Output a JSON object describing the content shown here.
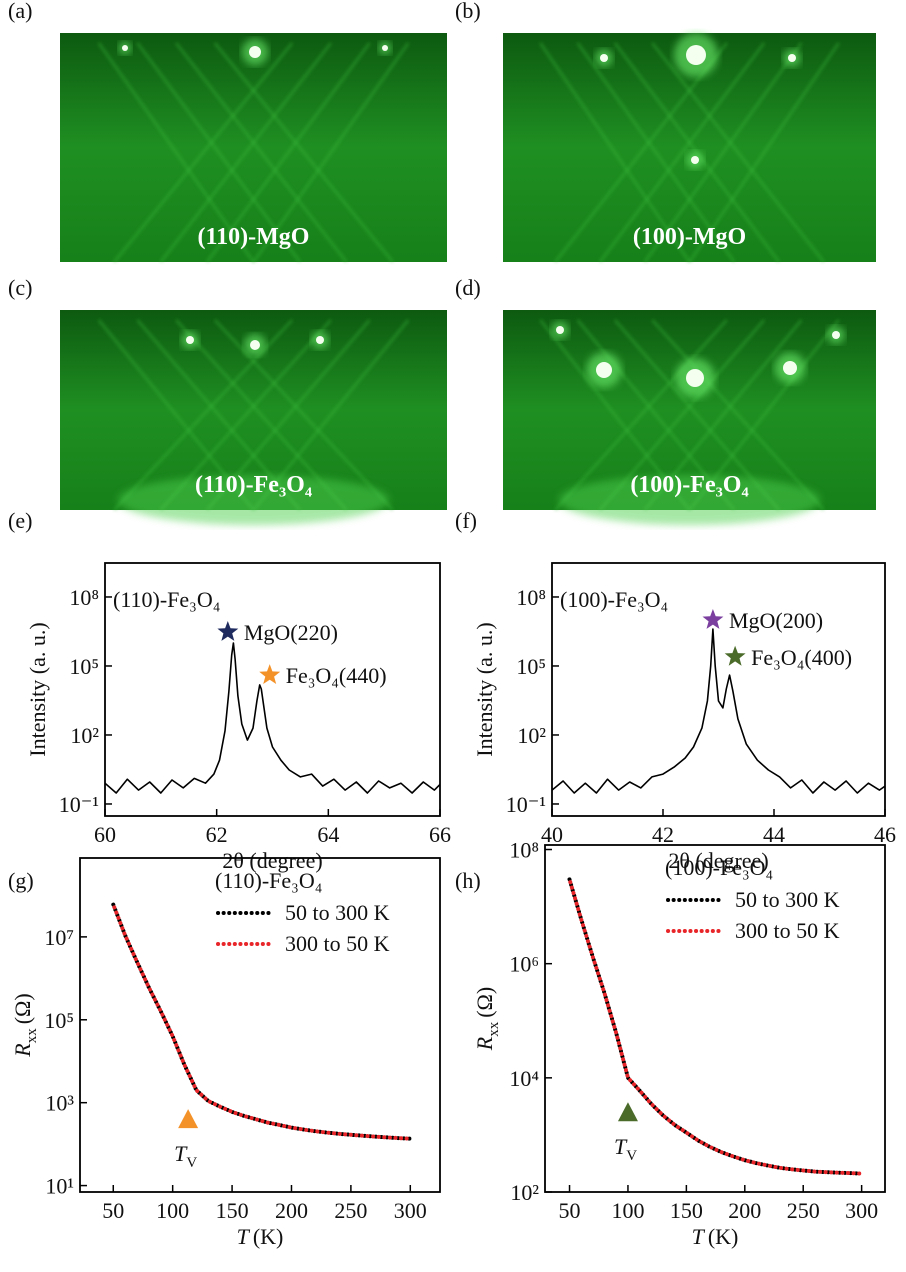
{
  "images": [
    {
      "label": "(a)",
      "caption": "(110)-MgO"
    },
    {
      "label": "(b)",
      "caption": "(100)-MgO"
    },
    {
      "label": "(c)",
      "caption": "(110)-Fe₃O₄"
    },
    {
      "label": "(d)",
      "caption": "(100)-Fe₃O₄"
    }
  ],
  "chart_data": [
    {
      "type": "line",
      "panel": "(e)",
      "log_y": true,
      "ylabel": "Intensity (a. u.)",
      "xlabel": "2θ (degree)",
      "inset_label": "(110)-Fe₃O₄",
      "xlim": [
        60,
        66
      ],
      "xticks": [
        60,
        62,
        64,
        66
      ],
      "ylim": [
        0.03,
        3000000000.0
      ],
      "yticks": [
        {
          "value": 0.1,
          "label": "10⁻¹"
        },
        {
          "value": 100,
          "label": "10²"
        },
        {
          "value": 100000,
          "label": "10⁵"
        },
        {
          "value": 100000000,
          "label": "10⁸"
        }
      ],
      "series": [
        {
          "color": "#000000",
          "x": [
            60,
            60.2,
            60.4,
            60.6,
            60.8,
            61,
            61.2,
            61.4,
            61.6,
            61.8,
            61.95,
            62.05,
            62.15,
            62.22,
            62.27,
            62.3,
            62.33,
            62.38,
            62.45,
            62.55,
            62.65,
            62.72,
            62.77,
            62.8,
            62.84,
            62.9,
            63,
            63.15,
            63.3,
            63.5,
            63.7,
            63.9,
            64.1,
            64.3,
            64.5,
            64.7,
            64.9,
            65.1,
            65.3,
            65.5,
            65.7,
            65.9,
            66
          ],
          "values": [
            0.8,
            0.3,
            1.2,
            0.4,
            0.9,
            0.3,
            1.1,
            0.5,
            1.3,
            0.8,
            2,
            8,
            150,
            8000,
            300000,
            1000000,
            200000,
            5000,
            300,
            60,
            200,
            3000,
            15000,
            10000,
            2000,
            200,
            30,
            8,
            3,
            1.5,
            2,
            0.6,
            1.2,
            0.4,
            0.9,
            0.3,
            1,
            0.5,
            0.8,
            0.3,
            0.9,
            0.4,
            0.7
          ]
        }
      ],
      "annotations": [
        {
          "text": "MgO(220)",
          "x": 62.2,
          "y": 3000000,
          "color": "#1f2a5e"
        },
        {
          "text": "Fe₃O₄(440)",
          "x": 62.95,
          "y": 40000,
          "color": "#f4922a"
        }
      ]
    },
    {
      "type": "line",
      "panel": "(f)",
      "log_y": true,
      "ylabel": "Intensity (a. u.)",
      "xlabel": "2θ (degree)",
      "inset_label": "(100)-Fe₃O₄",
      "xlim": [
        40,
        46
      ],
      "xticks": [
        40,
        42,
        44,
        46
      ],
      "ylim": [
        0.03,
        3000000000.0
      ],
      "yticks": [
        {
          "value": 0.1,
          "label": "10⁻¹"
        },
        {
          "value": 100,
          "label": "10²"
        },
        {
          "value": 100000,
          "label": "10⁵"
        },
        {
          "value": 100000000,
          "label": "10⁸"
        }
      ],
      "series": [
        {
          "color": "#000000",
          "x": [
            40,
            40.2,
            40.4,
            40.6,
            40.8,
            41,
            41.2,
            41.4,
            41.6,
            41.8,
            42,
            42.2,
            42.4,
            42.55,
            42.7,
            42.8,
            42.86,
            42.9,
            42.94,
            43.0,
            43.08,
            43.14,
            43.2,
            43.26,
            43.35,
            43.5,
            43.7,
            43.9,
            44.1,
            44.3,
            44.5,
            44.7,
            44.9,
            45.1,
            45.3,
            45.5,
            45.7,
            45.9,
            46
          ],
          "values": [
            0.4,
            1,
            0.3,
            0.8,
            0.3,
            1.2,
            0.4,
            0.9,
            0.5,
            1.5,
            2,
            4,
            10,
            30,
            200,
            3000,
            100000,
            4000000,
            100000,
            3000,
            1500,
            10000,
            40000,
            8000,
            500,
            40,
            8,
            3,
            1.5,
            0.5,
            1.1,
            0.3,
            0.9,
            0.4,
            1,
            0.3,
            0.8,
            0.4,
            0.6
          ]
        }
      ],
      "annotations": [
        {
          "text": "MgO(200)",
          "x": 42.9,
          "y": 10000000,
          "color": "#7b3fa0"
        },
        {
          "text": "Fe₃O₄(400)",
          "x": 43.3,
          "y": 250000,
          "color": "#4a6b2a"
        }
      ]
    },
    {
      "type": "line",
      "panel": "(g)",
      "log_y": true,
      "ylabel": {
        "var": "R",
        "sub": "xx",
        "unit": "(Ω)"
      },
      "xlabel": {
        "var": "T",
        "unit": "(K)"
      },
      "inset_label": "(110)-Fe₃O₄",
      "legend": true,
      "xlim": [
        22,
        325
      ],
      "xticks": [
        50,
        100,
        150,
        200,
        250,
        300
      ],
      "ylim": [
        7,
        800000000.0
      ],
      "yticks": [
        {
          "value": 10,
          "label": "10¹"
        },
        {
          "value": 1000,
          "label": "10³"
        },
        {
          "value": 100000,
          "label": "10⁵"
        },
        {
          "value": 10000000,
          "label": "10⁷"
        }
      ],
      "series": [
        {
          "name": "50 to 300 K",
          "color": "#000000",
          "x": [
            50,
            60,
            70,
            80,
            90,
            100,
            110,
            120,
            130,
            140,
            150,
            160,
            170,
            180,
            190,
            200,
            210,
            220,
            230,
            240,
            250,
            260,
            270,
            280,
            290,
            300
          ],
          "values": [
            60000000,
            11000000,
            2500000,
            600000,
            160000,
            40000,
            8000,
            2000,
            1100,
            800,
            600,
            480,
            400,
            330,
            290,
            250,
            225,
            205,
            190,
            178,
            168,
            160,
            152,
            145,
            140,
            135
          ]
        },
        {
          "name": "300 to 50 K",
          "color": "#e8262a",
          "x": [
            50,
            60,
            70,
            80,
            90,
            100,
            110,
            120,
            130,
            140,
            150,
            160,
            170,
            180,
            190,
            200,
            210,
            220,
            230,
            240,
            250,
            260,
            270,
            280,
            290,
            300
          ],
          "values": [
            60000000,
            11000000,
            2500000,
            600000,
            160000,
            40000,
            8000,
            2000,
            1100,
            800,
            600,
            480,
            400,
            330,
            290,
            250,
            225,
            205,
            190,
            178,
            168,
            160,
            152,
            145,
            140,
            135
          ]
        }
      ],
      "markers": [
        {
          "x": 113,
          "y": 400,
          "color": "#f4922a",
          "label": {
            "var": "T",
            "sub": "V"
          }
        }
      ]
    },
    {
      "type": "line",
      "panel": "(h)",
      "log_y": true,
      "ylabel": {
        "var": "R",
        "sub": "xx",
        "unit": "(Ω)"
      },
      "xlabel": {
        "var": "T",
        "unit": "(K)"
      },
      "inset_label": "(100)-Fe₃O₄",
      "legend": true,
      "xlim": [
        29,
        320
      ],
      "xticks": [
        50,
        100,
        150,
        200,
        250,
        300
      ],
      "ylim": [
        100,
        120000000.0
      ],
      "yticks": [
        {
          "value": 100,
          "label": "10²"
        },
        {
          "value": 10000,
          "label": "10⁴"
        },
        {
          "value": 1000000,
          "label": "10⁶"
        },
        {
          "value": 100000000,
          "label": "10⁸"
        }
      ],
      "series": [
        {
          "name": "50 to 300 K",
          "color": "#000000",
          "x": [
            50,
            60,
            70,
            80,
            90,
            100,
            110,
            120,
            130,
            140,
            150,
            160,
            170,
            180,
            190,
            200,
            210,
            220,
            230,
            240,
            250,
            260,
            270,
            280,
            290,
            300
          ],
          "values": [
            30000000,
            6000000,
            1300000,
            300000,
            60000,
            10000,
            6000,
            3500,
            2200,
            1500,
            1100,
            800,
            620,
            500,
            420,
            360,
            320,
            290,
            265,
            250,
            238,
            228,
            222,
            218,
            214,
            210
          ]
        },
        {
          "name": "300 to 50 K",
          "color": "#e8262a",
          "x": [
            50,
            60,
            70,
            80,
            90,
            100,
            110,
            120,
            130,
            140,
            150,
            160,
            170,
            180,
            190,
            200,
            210,
            220,
            230,
            240,
            250,
            260,
            270,
            280,
            290,
            300
          ],
          "values": [
            30000000,
            6000000,
            1300000,
            300000,
            60000,
            10000,
            6000,
            3500,
            2200,
            1500,
            1100,
            800,
            620,
            500,
            420,
            360,
            320,
            290,
            265,
            250,
            238,
            228,
            222,
            218,
            214,
            210
          ]
        }
      ],
      "markers": [
        {
          "x": 100,
          "y": 2500,
          "color": "#4a6b2a",
          "label": {
            "var": "T",
            "sub": "V"
          }
        }
      ]
    }
  ]
}
